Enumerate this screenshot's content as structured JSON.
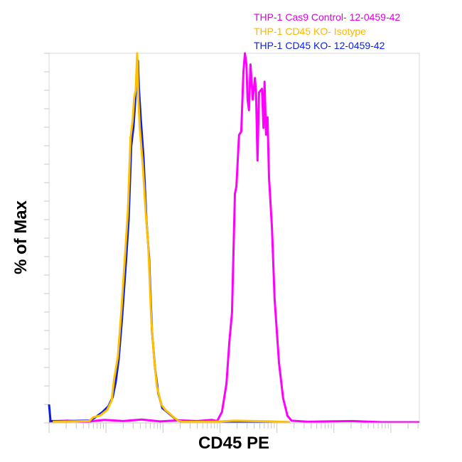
{
  "chart_data": {
    "type": "line",
    "title": "",
    "xlabel": "CD45 PE",
    "ylabel": "% of Max",
    "x_scale": "log",
    "x_tick_labels": "none",
    "y_tick_labels": "none",
    "xlim": [
      0,
      100
    ],
    "ylim": [
      0,
      100
    ],
    "grid": false,
    "legend_placement": "top-right",
    "series": [
      {
        "name": "THP-1 Cas9 Control- 12-0459-42",
        "color": "#ff00ff",
        "points": [
          [
            0,
            0.4
          ],
          [
            5,
            0.6
          ],
          [
            10,
            0.3
          ],
          [
            15,
            0.8
          ],
          [
            20,
            0.5
          ],
          [
            25,
            0.9
          ],
          [
            30,
            0.4
          ],
          [
            35,
            0.7
          ],
          [
            40,
            0.5
          ],
          [
            44,
            0.8
          ],
          [
            45.4,
            0.5
          ],
          [
            46.7,
            3
          ],
          [
            47.9,
            10.6
          ],
          [
            48.7,
            22
          ],
          [
            49.4,
            29.8
          ],
          [
            50.2,
            62
          ],
          [
            50.6,
            64
          ],
          [
            51.3,
            77.9
          ],
          [
            51.9,
            78.8
          ],
          [
            52.5,
            95
          ],
          [
            52.9,
            100
          ],
          [
            53.3,
            97
          ],
          [
            53.6,
            87.5
          ],
          [
            54.0,
            84.6
          ],
          [
            54.4,
            97
          ],
          [
            55.0,
            87.5
          ],
          [
            55.6,
            93.3
          ],
          [
            55.9,
            89.4
          ],
          [
            56.3,
            71
          ],
          [
            56.7,
            89.4
          ],
          [
            57.5,
            90.4
          ],
          [
            57.9,
            79.8
          ],
          [
            58.2,
            92.3
          ],
          [
            58.6,
            78
          ],
          [
            59.0,
            82.7
          ],
          [
            59.4,
            66.3
          ],
          [
            60.2,
            52.9
          ],
          [
            60.9,
            33.7
          ],
          [
            62.1,
            16.3
          ],
          [
            63.2,
            6.7
          ],
          [
            64.4,
            1.9
          ],
          [
            65.5,
            0.6
          ],
          [
            70,
            0.3
          ],
          [
            75,
            0.4
          ],
          [
            82,
            0.5
          ],
          [
            90,
            0.2
          ],
          [
            100,
            0.2
          ]
        ]
      },
      {
        "name": "THP-1 CD45 KO- Isotype",
        "color": "#ffc000",
        "points": [
          [
            1,
            0.3
          ],
          [
            6,
            0.4
          ],
          [
            10.9,
            0.5
          ],
          [
            11.9,
            1.5
          ],
          [
            13.8,
            2
          ],
          [
            15.7,
            3.5
          ],
          [
            16.9,
            6
          ],
          [
            17.6,
            12
          ],
          [
            18.6,
            18
          ],
          [
            19.5,
            30
          ],
          [
            20.5,
            45
          ],
          [
            21.3,
            57.5
          ],
          [
            22.0,
            77
          ],
          [
            22.6,
            82
          ],
          [
            23.0,
            88
          ],
          [
            23.4,
            90
          ],
          [
            23.8,
            100
          ],
          [
            24.1,
            88
          ],
          [
            24.5,
            80
          ],
          [
            25.3,
            70
          ],
          [
            26.1,
            57
          ],
          [
            26.8,
            48
          ],
          [
            27.6,
            28
          ],
          [
            28.4,
            17
          ],
          [
            29.1,
            10
          ],
          [
            30.3,
            5
          ],
          [
            31.4,
            3.5
          ],
          [
            32.6,
            2.5
          ],
          [
            33.7,
            1.5
          ],
          [
            34.9,
            0.6
          ],
          [
            36.0,
            0.3
          ],
          [
            45,
            0.3
          ],
          [
            50,
            0.6
          ],
          [
            55,
            0.5
          ],
          [
            60,
            0.4
          ],
          [
            65,
            0.2
          ]
        ]
      },
      {
        "name": "THP-1 CD45 KO- 12-0459-42",
        "color": "#0a1ee6",
        "points": [
          [
            0,
            5
          ],
          [
            0.4,
            0.5
          ],
          [
            5,
            0.5
          ],
          [
            9,
            0.6
          ],
          [
            11,
            0.6
          ],
          [
            12.5,
            1.5
          ],
          [
            14.5,
            3
          ],
          [
            16,
            4.5
          ],
          [
            17.2,
            7
          ],
          [
            18.0,
            11
          ],
          [
            18.8,
            17
          ],
          [
            19.7,
            28
          ],
          [
            20.8,
            44
          ],
          [
            21.5,
            55
          ],
          [
            22.2,
            75
          ],
          [
            22.8,
            80
          ],
          [
            23.2,
            86
          ],
          [
            23.6,
            92
          ],
          [
            24.0,
            98
          ],
          [
            24.3,
            90
          ],
          [
            24.8,
            82
          ],
          [
            25.5,
            72
          ],
          [
            26.3,
            55
          ],
          [
            27.0,
            45
          ],
          [
            27.8,
            25
          ],
          [
            28.6,
            15
          ],
          [
            29.5,
            8
          ],
          [
            30.6,
            4
          ],
          [
            31.8,
            3
          ],
          [
            33.0,
            2
          ],
          [
            34.2,
            1
          ],
          [
            35.5,
            0.4
          ],
          [
            45,
            0.3
          ],
          [
            55,
            0.4
          ],
          [
            65,
            0.2
          ]
        ]
      }
    ]
  }
}
